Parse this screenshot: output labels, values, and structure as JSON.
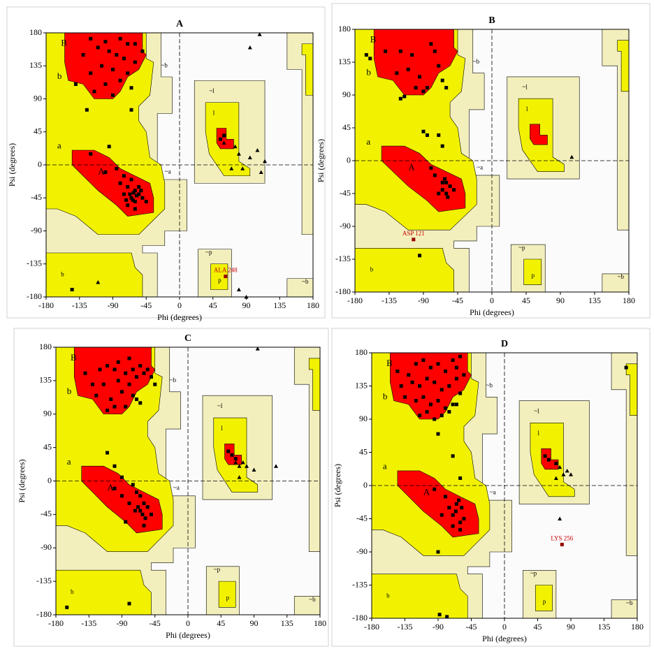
{
  "chart_data": [
    {
      "type": "scatter",
      "title": "A",
      "xlabel": "Phi (degrees)",
      "ylabel": "Psi (degrees)",
      "xlim": [
        -180,
        180
      ],
      "ylim": [
        -180,
        180
      ],
      "xticks": [
        -180,
        -135,
        -90,
        -45,
        0,
        45,
        90,
        135,
        180
      ],
      "yticks": [
        -180,
        -135,
        -90,
        -45,
        0,
        45,
        90,
        135,
        180
      ],
      "region_labels": [
        "B",
        "b",
        "A",
        "a",
        "~b",
        "~a",
        "l",
        "~l",
        "p",
        "~p",
        "b",
        "~b"
      ],
      "series": [
        {
          "marker": "square",
          "color": "#000000",
          "x": [
            -120,
            -100,
            -80,
            -70,
            -110,
            -95,
            -85,
            -130,
            -75,
            -60,
            -105,
            -90,
            -120,
            -70,
            -80,
            -100,
            -115,
            -65,
            -90,
            -140,
            -50,
            -60,
            -125,
            -65,
            -145,
            -95,
            -120,
            -85,
            -75,
            -65,
            -70,
            -60,
            -55,
            -65,
            -60,
            -50,
            -70,
            -55,
            -62,
            -58,
            -67,
            -63,
            -52,
            -75,
            -80,
            -100,
            -45,
            -60,
            -72,
            60,
            55
          ],
          "y": [
            172,
            168,
            172,
            165,
            160,
            155,
            150,
            150,
            145,
            140,
            135,
            130,
            125,
            125,
            115,
            110,
            100,
            105,
            95,
            110,
            155,
            165,
            75,
            75,
            -170,
            25,
            15,
            -5,
            -15,
            -20,
            -30,
            -35,
            -40,
            -45,
            -50,
            -45,
            -55,
            -30,
            -38,
            -42,
            -40,
            -48,
            -35,
            -40,
            -25,
            -10,
            -50,
            -60,
            -48,
            40,
            35
          ]
        },
        {
          "marker": "triangle",
          "color": "#000000",
          "x": [
            95,
            108,
            60,
            75,
            80,
            95,
            105,
            110,
            115,
            85,
            70,
            -110,
            80,
            90
          ],
          "y": [
            160,
            178,
            30,
            25,
            15,
            10,
            20,
            -10,
            5,
            -5,
            -5,
            -160,
            -170,
            -180
          ]
        }
      ],
      "annotations": [
        {
          "text": "ALA 248",
          "x": 62,
          "y": -152,
          "color": "#cc0000"
        }
      ]
    },
    {
      "type": "scatter",
      "title": "B",
      "xlabel": "Phi (degrees)",
      "ylabel": "Psi (degrees)",
      "xlim": [
        -180,
        180
      ],
      "ylim": [
        -180,
        180
      ],
      "xticks": [
        -180,
        -135,
        -90,
        -45,
        0,
        45,
        90,
        135,
        180
      ],
      "yticks": [
        -180,
        -135,
        -90,
        -45,
        0,
        45,
        90,
        135,
        180
      ],
      "region_labels": [
        "B",
        "b",
        "A",
        "a",
        "~b",
        "~a",
        "l",
        "~l",
        "p",
        "~p",
        "b",
        "~b"
      ],
      "series": [
        {
          "marker": "square",
          "color": "#000000",
          "x": [
            -165,
            -160,
            -140,
            -120,
            -105,
            -80,
            -75,
            -70,
            -110,
            -95,
            -125,
            -65,
            -85,
            -100,
            -90,
            -60,
            -120,
            -115,
            -90,
            -85,
            -70,
            -65,
            -60,
            -55,
            -65,
            -70,
            -60,
            -58,
            -62,
            -75,
            -80,
            -50,
            -65,
            -95
          ],
          "y": [
            145,
            140,
            150,
            150,
            145,
            160,
            150,
            130,
            125,
            115,
            120,
            110,
            100,
            100,
            95,
            100,
            85,
            88,
            40,
            35,
            35,
            20,
            -30,
            -35,
            -40,
            -45,
            -45,
            -50,
            -25,
            -20,
            -10,
            -40,
            -30,
            -130
          ]
        },
        {
          "marker": "triangle",
          "color": "#000000",
          "x": [
            105
          ],
          "y": [
            5
          ]
        }
      ],
      "annotations": [
        {
          "text": "ASP 121",
          "x": -103,
          "y": -108,
          "color": "#cc0000"
        }
      ]
    },
    {
      "type": "scatter",
      "title": "C",
      "xlabel": "Phi (degrees)",
      "ylabel": "Psi (degrees)",
      "xlim": [
        -180,
        180
      ],
      "ylim": [
        -180,
        180
      ],
      "xticks": [
        -180,
        -135,
        -90,
        -45,
        0,
        45,
        90,
        135,
        180
      ],
      "yticks": [
        -180,
        -135,
        -90,
        -45,
        0,
        45,
        90,
        135,
        180
      ],
      "region_labels": [
        "B",
        "b",
        "A",
        "a",
        "~b",
        "~a",
        "l",
        "~l",
        "p",
        "~p",
        "b",
        "~b"
      ],
      "series": [
        {
          "marker": "square",
          "color": "#000000",
          "x": [
            -140,
            -120,
            -110,
            -100,
            -85,
            -75,
            -65,
            -130,
            -115,
            -95,
            -80,
            -70,
            -60,
            -50,
            -125,
            -105,
            -90,
            -75,
            -65,
            -110,
            -100,
            -85,
            -70,
            -95,
            -80,
            -45,
            -55,
            -110,
            -100,
            -90,
            -75,
            -70,
            -65,
            -60,
            -55,
            -65,
            -62,
            -58,
            -68,
            -72,
            -80,
            -90,
            -100,
            -85,
            -50,
            -60,
            55,
            60,
            65,
            -165,
            -80
          ],
          "y": [
            145,
            150,
            155,
            150,
            145,
            150,
            155,
            130,
            130,
            135,
            130,
            140,
            145,
            140,
            115,
            110,
            120,
            115,
            105,
            95,
            100,
            100,
            110,
            160,
            165,
            130,
            150,
            38,
            20,
            5,
            -5,
            -15,
            -20,
            -30,
            -35,
            -40,
            -45,
            -50,
            -35,
            -40,
            -30,
            -20,
            -10,
            -55,
            -45,
            -60,
            40,
            35,
            30,
            -170,
            -165
          ]
        },
        {
          "marker": "triangle",
          "color": "#000000",
          "x": [
            95,
            65,
            70,
            75,
            80,
            90,
            120,
            70
          ],
          "y": [
            178,
            25,
            20,
            25,
            20,
            15,
            20,
            5
          ]
        }
      ]
    },
    {
      "type": "scatter",
      "title": "D",
      "xlabel": "Phi (degrees)",
      "ylabel": "Psi (degrees)",
      "xlim": [
        -180,
        180
      ],
      "ylim": [
        -180,
        180
      ],
      "xticks": [
        -180,
        -135,
        -90,
        -45,
        0,
        45,
        90,
        135,
        180
      ],
      "yticks": [
        -180,
        -135,
        -90,
        -45,
        0,
        45,
        90,
        135,
        180
      ],
      "region_labels": [
        "B",
        "b",
        "A",
        "a",
        "~b",
        "~a",
        "l",
        "~l",
        "p",
        "~p",
        "b",
        "~b"
      ],
      "series": [
        {
          "marker": "square",
          "color": "#000000",
          "x": [
            -145,
            -130,
            -120,
            -110,
            -100,
            -90,
            -80,
            -70,
            -65,
            -60,
            -140,
            -125,
            -115,
            -105,
            -95,
            -85,
            -75,
            -65,
            -55,
            -135,
            -120,
            -110,
            -100,
            -90,
            -80,
            -70,
            -60,
            -115,
            -105,
            -95,
            -85,
            -75,
            -65,
            -90,
            -70,
            -60,
            -62,
            -58,
            -66,
            -70,
            -55,
            -60,
            -65,
            -75,
            -80,
            -95,
            -85,
            -70,
            -60,
            -90,
            55,
            60,
            70,
            165,
            -88,
            -78
          ],
          "y": [
            155,
            150,
            165,
            170,
            160,
            165,
            155,
            170,
            160,
            175,
            135,
            140,
            135,
            145,
            140,
            130,
            135,
            145,
            150,
            120,
            115,
            120,
            110,
            115,
            105,
            110,
            125,
            95,
            100,
            90,
            95,
            100,
            110,
            70,
            40,
            10,
            -20,
            -30,
            -35,
            -40,
            -45,
            -50,
            -25,
            -30,
            -15,
            -5,
            -40,
            -55,
            -60,
            -90,
            40,
            35,
            30,
            160,
            -175,
            -178
          ]
        },
        {
          "marker": "triangle",
          "color": "#000000",
          "x": [
            75,
            80,
            70,
            85,
            90,
            75
          ],
          "y": [
            25,
            15,
            10,
            20,
            15,
            -45
          ]
        }
      ],
      "annotations": [
        {
          "text": "LYS 256",
          "x": 78,
          "y": -80,
          "color": "#cc0000"
        }
      ]
    }
  ]
}
